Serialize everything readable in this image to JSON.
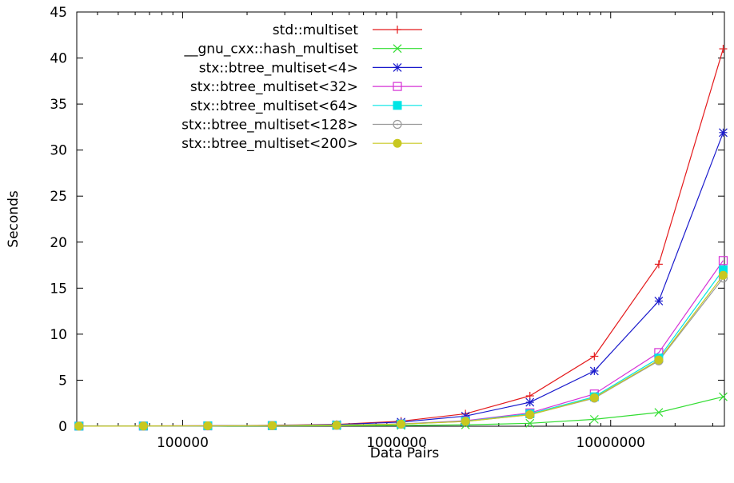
{
  "chart_data": {
    "type": "line",
    "xlabel": "Data Pairs",
    "ylabel": "Seconds",
    "x_scale": "log",
    "xlim": [
      32000,
      34000000
    ],
    "ylim": [
      0,
      45
    ],
    "grid": false,
    "legend_position": "top-left",
    "xticks": [
      100000,
      1000000,
      10000000
    ],
    "xtick_labels": [
      "100000",
      "1000000",
      "10000000"
    ],
    "yticks": [
      0,
      5,
      10,
      15,
      20,
      25,
      30,
      35,
      40,
      45
    ],
    "ytick_labels": [
      "0",
      "5",
      "10",
      "15",
      "20",
      "25",
      "30",
      "35",
      "40",
      "45"
    ],
    "x": [
      32768,
      65536,
      131072,
      262144,
      524288,
      1048576,
      2097152,
      4194304,
      8388608,
      16777216,
      33554432
    ],
    "series": [
      {
        "name": "std::multiset",
        "color": "#e41a1c",
        "marker": "plus",
        "values": [
          0.02,
          0.03,
          0.05,
          0.1,
          0.2,
          0.55,
          1.35,
          3.3,
          7.6,
          17.6,
          41.0
        ]
      },
      {
        "name": "__gnu_cxx::hash_multiset",
        "color": "#33dd33",
        "marker": "cross",
        "values": [
          0.01,
          0.01,
          0.02,
          0.03,
          0.05,
          0.08,
          0.15,
          0.32,
          0.75,
          1.5,
          3.2
        ]
      },
      {
        "name": "stx::btree_multiset<4>",
        "color": "#1a1acc",
        "marker": "star",
        "values": [
          0.02,
          0.03,
          0.05,
          0.09,
          0.18,
          0.45,
          1.1,
          2.6,
          6.0,
          13.6,
          31.9
        ]
      },
      {
        "name": "stx::btree_multiset<32>",
        "color": "#d633d6",
        "marker": "open-square",
        "values": [
          0.01,
          0.02,
          0.04,
          0.07,
          0.12,
          0.25,
          0.6,
          1.45,
          3.5,
          8.0,
          18.0
        ]
      },
      {
        "name": "stx::btree_multiset<64>",
        "color": "#00e5e5",
        "marker": "filled-square",
        "values": [
          0.01,
          0.02,
          0.04,
          0.07,
          0.12,
          0.24,
          0.55,
          1.35,
          3.2,
          7.4,
          17.0
        ]
      },
      {
        "name": "stx::btree_multiset<128>",
        "color": "#999999",
        "marker": "open-circle",
        "values": [
          0.01,
          0.02,
          0.04,
          0.07,
          0.11,
          0.23,
          0.52,
          1.25,
          3.05,
          7.1,
          16.1
        ]
      },
      {
        "name": "stx::btree_multiset<200>",
        "color": "#c8c820",
        "marker": "filled-circle",
        "values": [
          0.01,
          0.02,
          0.04,
          0.07,
          0.11,
          0.23,
          0.52,
          1.25,
          3.1,
          7.2,
          16.4
        ]
      }
    ]
  }
}
